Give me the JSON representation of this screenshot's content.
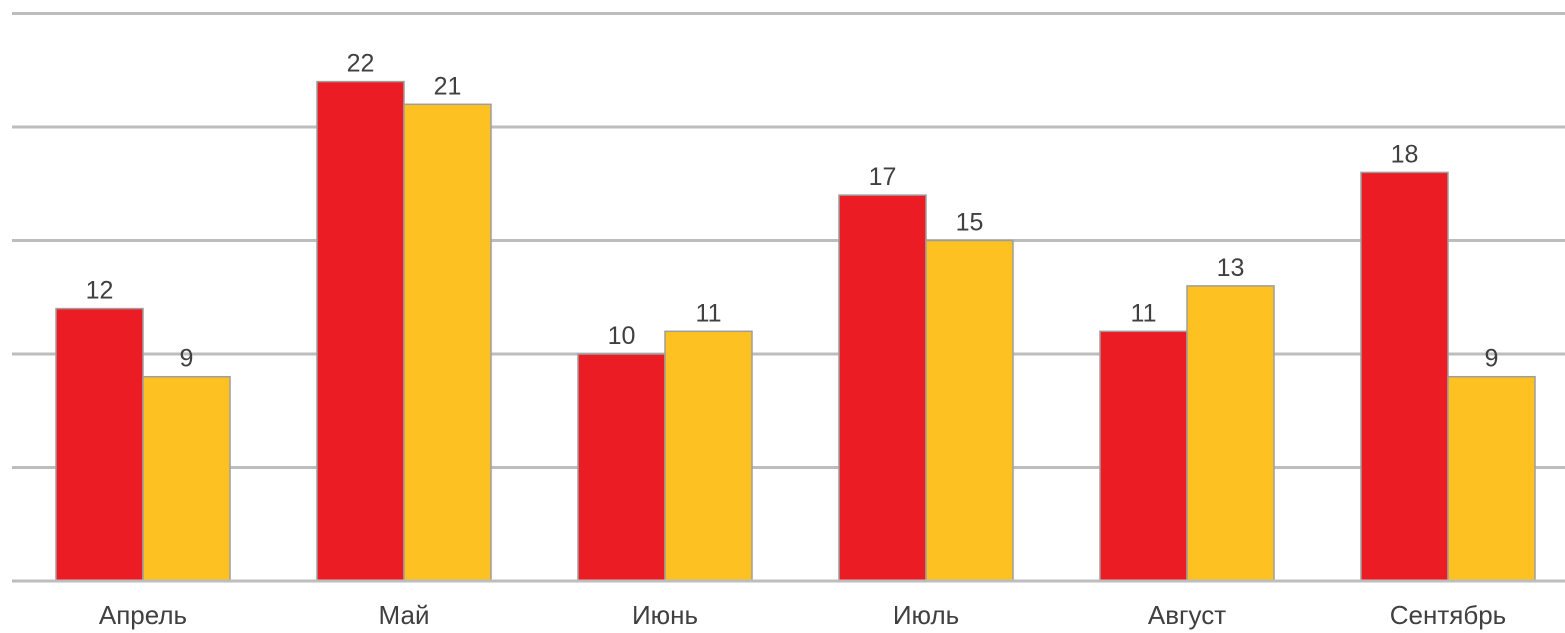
{
  "chart_data": {
    "type": "bar",
    "categories": [
      "Апрель",
      "Май",
      "Июнь",
      "Июль",
      "Август",
      "Сентябрь"
    ],
    "series": [
      {
        "values": [
          12,
          22,
          10,
          17,
          11,
          18
        ],
        "color": "#ec1c24"
      },
      {
        "values": [
          9,
          21,
          11,
          15,
          13,
          9
        ],
        "color": "#fdc121"
      }
    ],
    "title": "",
    "xlabel": "",
    "ylabel": "",
    "ylim": [
      0,
      25
    ],
    "grid": true,
    "gridlines_at": [
      0,
      5,
      10,
      15,
      20,
      25
    ],
    "y_tick_labels_shown": false,
    "data_labels": true,
    "legend": "none"
  }
}
